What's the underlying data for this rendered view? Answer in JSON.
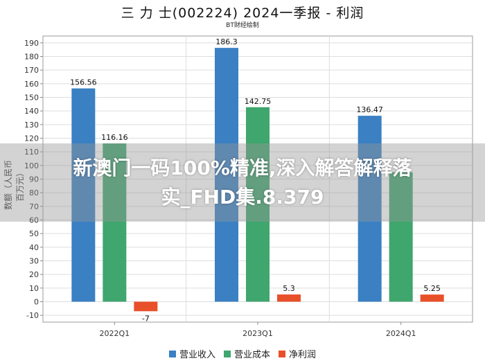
{
  "chart_data": {
    "type": "bar",
    "title": "三 力 士(002224) 2024一季报 - 利润",
    "subtitle": "BT财经绘制",
    "ylabel": "数额（人民币百万元）",
    "categories": [
      "2022Q1",
      "2023Q1",
      "2024Q1"
    ],
    "series": [
      {
        "name": "营业收入",
        "color": "#3a80c3",
        "values": [
          156.56,
          186.3,
          136.47
        ],
        "labels": [
          "156.56",
          "186.3",
          "136.47"
        ]
      },
      {
        "name": "营业成本",
        "color": "#3fa66e",
        "values": [
          116.16,
          142.75,
          95
        ],
        "labels": [
          "116.16",
          "142.75",
          ""
        ]
      },
      {
        "name": "净利润",
        "color": "#e8502a",
        "values": [
          -7,
          5.3,
          5.25
        ],
        "labels": [
          "-7",
          "5.3",
          "5.25"
        ]
      }
    ],
    "ylim": [
      -15,
      195
    ],
    "yticks": [
      -10,
      0,
      10,
      20,
      30,
      40,
      50,
      60,
      70,
      80,
      90,
      100,
      110,
      120,
      130,
      140,
      150,
      160,
      170,
      180,
      190
    ],
    "grid": true,
    "legend_position": "bottom"
  },
  "overlay": {
    "text_line1": "新澳门一码100%精准,深入解答解释落",
    "text_line2": "实_FHD集.8.379"
  }
}
